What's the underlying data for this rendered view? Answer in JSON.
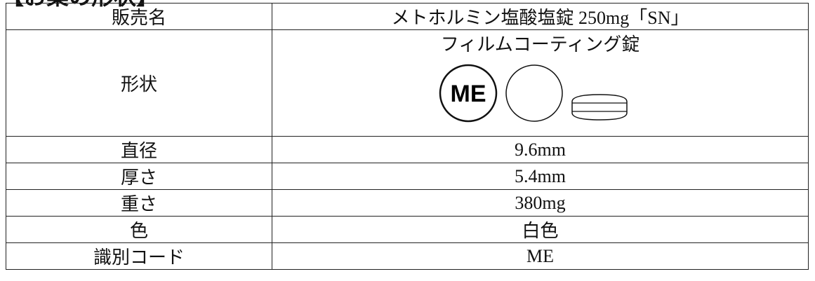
{
  "header": {
    "title": "【お薬の形状】"
  },
  "table": {
    "rows": [
      [
        "販売名",
        "メトホルミン塩酸塩錠 250mg「SN」"
      ],
      [
        "形状",
        "フィルムコーティング錠"
      ],
      [
        "直径",
        "9.6mm"
      ],
      [
        "厚さ",
        "5.4mm"
      ],
      [
        "重さ",
        "380mg"
      ],
      [
        "色",
        "白色"
      ],
      [
        "識別コード",
        "ME"
      ]
    ]
  },
  "shape": {
    "icon_label": "ME"
  }
}
